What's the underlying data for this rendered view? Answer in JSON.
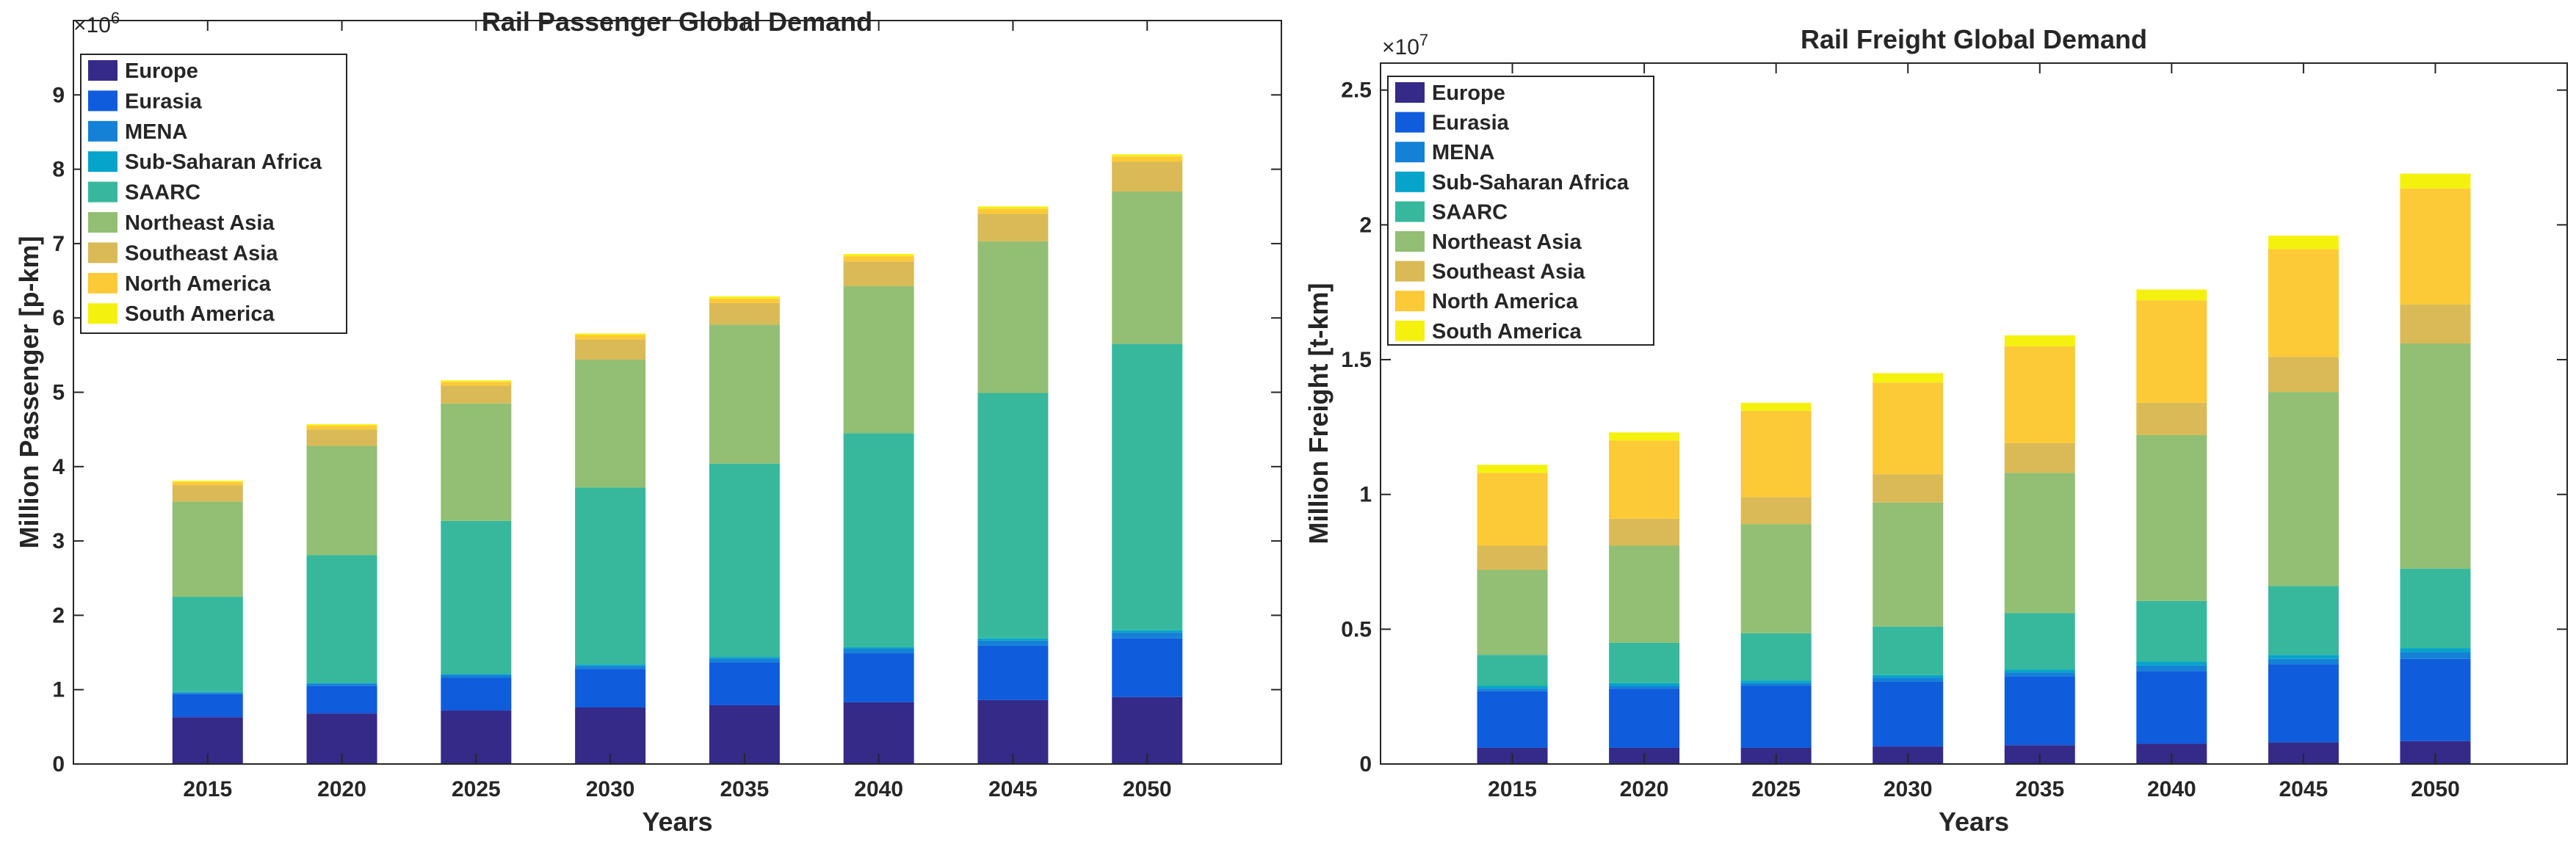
{
  "chart_data": [
    {
      "type": "bar",
      "stacked": true,
      "title": "Rail Passenger Global Demand",
      "xlabel": "Years",
      "ylabel": "Million Passenger [p-km]",
      "exponent_label": "×10",
      "exponent_power": "6",
      "scale": 1000000,
      "ylim": [
        0,
        10
      ],
      "yticks": [
        0,
        1,
        2,
        3,
        4,
        5,
        6,
        7,
        8,
        9
      ],
      "ytick_labels": [
        "0",
        "1",
        "2",
        "3",
        "4",
        "5",
        "6",
        "7",
        "8",
        "9"
      ],
      "categories": [
        "2015",
        "2020",
        "2025",
        "2030",
        "2035",
        "2040",
        "2045",
        "2050"
      ],
      "legend_position": "top-left",
      "series": [
        {
          "name": "Europe",
          "color": "#352a87",
          "values": [
            0.63,
            0.68,
            0.72,
            0.76,
            0.79,
            0.83,
            0.86,
            0.9
          ]
        },
        {
          "name": "Eurasia",
          "color": "#0f5cdd",
          "values": [
            0.31,
            0.37,
            0.44,
            0.52,
            0.58,
            0.66,
            0.73,
            0.79
          ]
        },
        {
          "name": "MENA",
          "color": "#1481d6",
          "values": [
            0.02,
            0.03,
            0.04,
            0.04,
            0.05,
            0.06,
            0.07,
            0.08
          ]
        },
        {
          "name": "Sub-Saharan Africa",
          "color": "#06a4ca",
          "values": [
            0.01,
            0.01,
            0.01,
            0.02,
            0.02,
            0.02,
            0.03,
            0.03
          ]
        },
        {
          "name": "SAARC",
          "color": "#37b89d",
          "values": [
            1.28,
            1.72,
            2.06,
            2.38,
            2.6,
            2.88,
            3.3,
            3.85
          ]
        },
        {
          "name": "Northeast Asia",
          "color": "#92bf73",
          "values": [
            1.28,
            1.47,
            1.58,
            1.72,
            1.87,
            1.98,
            2.04,
            2.05
          ]
        },
        {
          "name": "Southeast Asia",
          "color": "#d9ba56",
          "values": [
            0.22,
            0.22,
            0.24,
            0.27,
            0.29,
            0.33,
            0.37,
            0.4
          ]
        },
        {
          "name": "North America",
          "color": "#fcc937",
          "values": [
            0.04,
            0.05,
            0.05,
            0.06,
            0.06,
            0.07,
            0.07,
            0.07
          ]
        },
        {
          "name": "South America",
          "color": "#f5f10f",
          "values": [
            0.02,
            0.02,
            0.02,
            0.02,
            0.03,
            0.03,
            0.03,
            0.03
          ]
        }
      ]
    },
    {
      "type": "bar",
      "stacked": true,
      "title": "Rail Freight Global Demand",
      "xlabel": "Years",
      "ylabel": "Million Freight [t-km]",
      "exponent_label": "×10",
      "exponent_power": "7",
      "scale": 10000000,
      "ylim": [
        0,
        2.6
      ],
      "yticks": [
        0,
        0.5,
        1,
        1.5,
        2,
        2.5
      ],
      "ytick_labels": [
        "0",
        "0.5",
        "1",
        "1.5",
        "2",
        "2.5"
      ],
      "categories": [
        "2015",
        "2020",
        "2025",
        "2030",
        "2035",
        "2040",
        "2045",
        "2050"
      ],
      "legend_position": "top-left",
      "series": [
        {
          "name": "Europe",
          "color": "#352a87",
          "values": [
            0.06,
            0.06,
            0.06,
            0.065,
            0.07,
            0.075,
            0.08,
            0.085
          ]
        },
        {
          "name": "Eurasia",
          "color": "#0f5cdd",
          "values": [
            0.21,
            0.22,
            0.23,
            0.24,
            0.255,
            0.27,
            0.29,
            0.305
          ]
        },
        {
          "name": "MENA",
          "color": "#1481d6",
          "values": [
            0.01,
            0.01,
            0.01,
            0.015,
            0.015,
            0.02,
            0.02,
            0.025
          ]
        },
        {
          "name": "Sub-Saharan Africa",
          "color": "#06a4ca",
          "values": [
            0.01,
            0.01,
            0.01,
            0.01,
            0.01,
            0.015,
            0.015,
            0.015
          ]
        },
        {
          "name": "SAARC",
          "color": "#37b89d",
          "values": [
            0.115,
            0.15,
            0.175,
            0.18,
            0.21,
            0.225,
            0.255,
            0.295
          ]
        },
        {
          "name": "Northeast Asia",
          "color": "#92bf73",
          "values": [
            0.315,
            0.36,
            0.405,
            0.46,
            0.52,
            0.615,
            0.72,
            0.835
          ]
        },
        {
          "name": "Southeast Asia",
          "color": "#d9ba56",
          "values": [
            0.09,
            0.1,
            0.1,
            0.105,
            0.11,
            0.12,
            0.13,
            0.145
          ]
        },
        {
          "name": "North America",
          "color": "#fcc937",
          "values": [
            0.27,
            0.29,
            0.32,
            0.34,
            0.36,
            0.38,
            0.4,
            0.43
          ]
        },
        {
          "name": "South America",
          "color": "#f5f10f",
          "values": [
            0.03,
            0.03,
            0.03,
            0.035,
            0.04,
            0.04,
            0.05,
            0.055
          ]
        }
      ]
    }
  ]
}
